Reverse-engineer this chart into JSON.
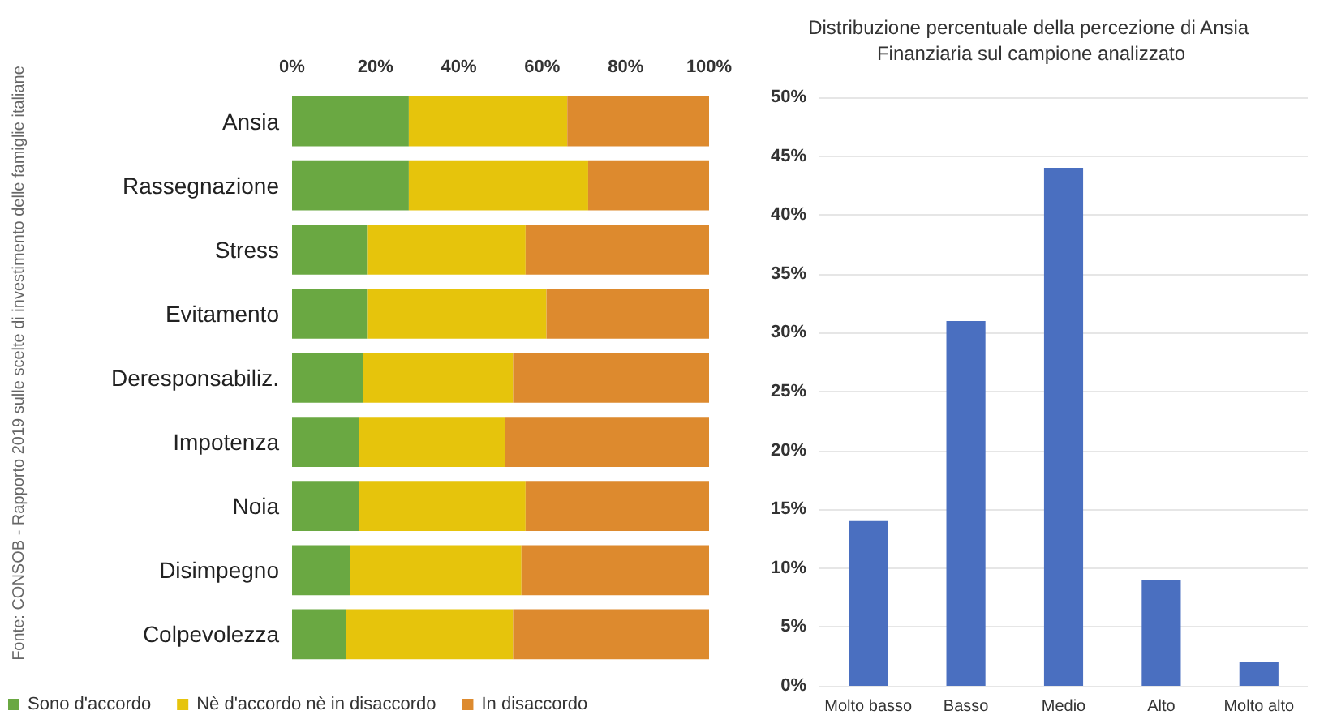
{
  "chart_data": [
    {
      "type": "bar",
      "orientation": "horizontal",
      "stacked": true,
      "categories": [
        "Ansia",
        "Rassegnazione",
        "Stress",
        "Evitamento",
        "Deresponsabiliz.",
        "Impotenza",
        "Noia",
        "Disimpegno",
        "Colpevolezza"
      ],
      "series": [
        {
          "name": "Sono d'accordo",
          "color": "#6aa842",
          "values": [
            28,
            28,
            18,
            18,
            17,
            16,
            16,
            14,
            13
          ]
        },
        {
          "name": "Nè d'accordo nè in disaccordo",
          "color": "#e6c40c",
          "values": [
            38,
            43,
            38,
            43,
            36,
            35,
            40,
            41,
            40
          ]
        },
        {
          "name": "In disaccordo",
          "color": "#dd8a2e",
          "values": [
            34,
            29,
            44,
            39,
            47,
            49,
            44,
            45,
            47
          ]
        }
      ],
      "xlim": [
        0,
        100
      ],
      "xticks": [
        {
          "value": 0,
          "label": "0%"
        },
        {
          "value": 20,
          "label": "20%"
        },
        {
          "value": 40,
          "label": "40%"
        },
        {
          "value": 60,
          "label": "60%"
        },
        {
          "value": 80,
          "label": "80%"
        },
        {
          "value": 100,
          "label": "100%"
        }
      ],
      "legend": "bottom",
      "annotations": [
        "Fonte: CONSOB - Rapporto 2019 sulle scelte di investimento delle famiglie italiane"
      ]
    },
    {
      "type": "bar",
      "title": "Distribuzione percentuale della percezione di Ansia Finanziaria sul campione analizzato",
      "categories": [
        "Molto basso",
        "Basso",
        "Medio",
        "Alto",
        "Molto alto"
      ],
      "values": [
        14,
        31,
        44,
        9,
        2
      ],
      "color": "#4a6fc0",
      "ylim": [
        0,
        50
      ],
      "yticks": [
        {
          "value": 0,
          "label": "0%"
        },
        {
          "value": 5,
          "label": "5%"
        },
        {
          "value": 10,
          "label": "10%"
        },
        {
          "value": 15,
          "label": "15%"
        },
        {
          "value": 20,
          "label": "20%"
        },
        {
          "value": 25,
          "label": "25%"
        },
        {
          "value": 30,
          "label": "30%"
        },
        {
          "value": 35,
          "label": "35%"
        },
        {
          "value": 40,
          "label": "40%"
        },
        {
          "value": 45,
          "label": "45%"
        },
        {
          "value": 50,
          "label": "50%"
        }
      ],
      "grid": "y"
    }
  ]
}
